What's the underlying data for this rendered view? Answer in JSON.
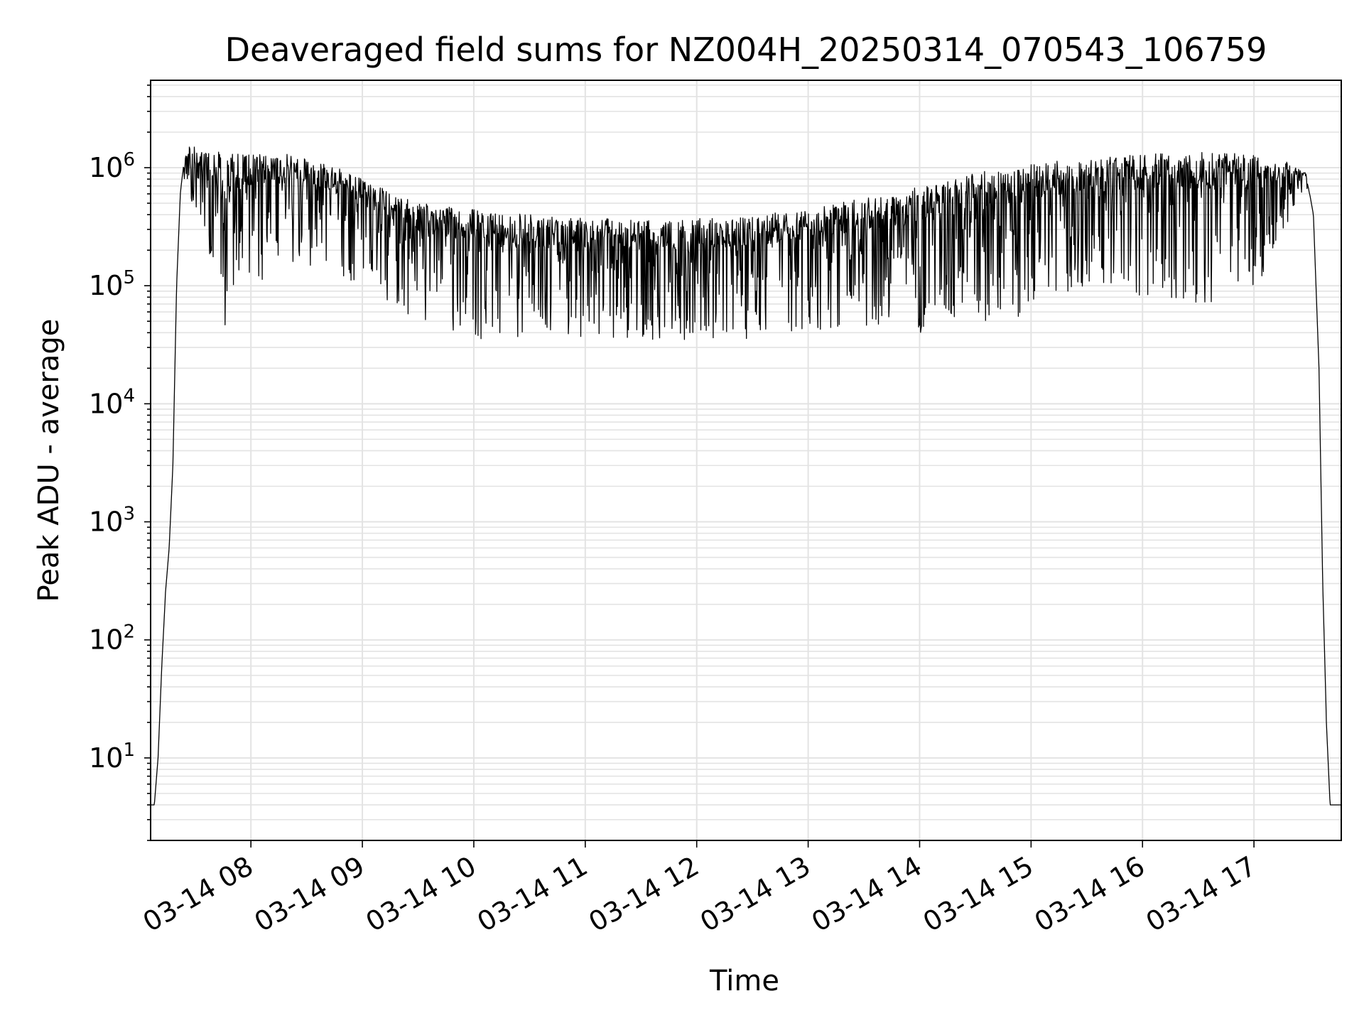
{
  "chart_data": {
    "type": "line",
    "title": "Deaveraged field sums for NZ004H_20250314_070543_106759",
    "xlabel": "Time",
    "ylabel": "Peak ADU - average",
    "yscale": "log",
    "grid": true,
    "line_color": "#000000",
    "grid_color": "#e3e3e3",
    "x_ticks": [
      "03-14 08",
      "03-14 09",
      "03-14 10",
      "03-14 11",
      "03-14 12",
      "03-14 13",
      "03-14 14",
      "03-14 15",
      "03-14 16",
      "03-14 17"
    ],
    "y_ticks": [
      {
        "base": "10",
        "exp": "1",
        "value": 10
      },
      {
        "base": "10",
        "exp": "2",
        "value": 100
      },
      {
        "base": "10",
        "exp": "3",
        "value": 1000
      },
      {
        "base": "10",
        "exp": "4",
        "value": 10000
      },
      {
        "base": "10",
        "exp": "5",
        "value": 100000
      },
      {
        "base": "10",
        "exp": "6",
        "value": 1000000
      }
    ],
    "xlim": [
      "2025-03-14 07:06",
      "2025-03-14 17:47"
    ],
    "ylim": [
      2,
      5500000
    ],
    "series": [
      {
        "x": [
          "2025-03-14 07:06",
          "2025-03-14 07:08",
          "2025-03-14 07:10",
          "2025-03-14 07:12",
          "2025-03-14 07:14",
          "2025-03-14 07:16",
          "2025-03-14 07:18",
          "2025-03-14 07:20",
          "2025-03-14 07:22",
          "2025-03-14 07:24",
          "2025-03-14 07:26",
          "2025-03-14 07:30",
          "2025-03-14 07:35",
          "2025-03-14 07:45",
          "2025-03-14 08:00",
          "2025-03-14 08:30",
          "2025-03-14 09:00",
          "2025-03-14 09:30",
          "2025-03-14 10:00",
          "2025-03-14 10:30",
          "2025-03-14 11:00",
          "2025-03-14 11:30",
          "2025-03-14 12:00",
          "2025-03-14 12:30",
          "2025-03-14 13:00",
          "2025-03-14 13:30",
          "2025-03-14 14:00",
          "2025-03-14 14:30",
          "2025-03-14 15:00",
          "2025-03-14 15:30",
          "2025-03-14 16:00",
          "2025-03-14 16:30",
          "2025-03-14 17:00",
          "2025-03-14 17:20",
          "2025-03-14 17:28",
          "2025-03-14 17:32",
          "2025-03-14 17:35",
          "2025-03-14 17:37",
          "2025-03-14 17:39",
          "2025-03-14 17:41",
          "2025-03-14 17:47"
        ],
        "upper": [
          4,
          4,
          10,
          60,
          250,
          600,
          3000,
          100000,
          600000,
          1200000,
          1500000,
          1500000,
          1400000,
          1400000,
          1300000,
          1300000,
          800000,
          500000,
          450000,
          400000,
          380000,
          360000,
          370000,
          400000,
          450000,
          550000,
          700000,
          900000,
          1100000,
          1200000,
          1300000,
          1350000,
          1300000,
          1100000,
          900000,
          400000,
          20000,
          300,
          20,
          4,
          4
        ],
        "lower": [
          4,
          4,
          10,
          60,
          250,
          600,
          3000,
          100000,
          600000,
          800000,
          800000,
          300000,
          150000,
          40000,
          100000,
          150000,
          100000,
          50000,
          35000,
          30000,
          35000,
          35000,
          35000,
          35000,
          40000,
          45000,
          40000,
          40000,
          60000,
          100000,
          80000,
          70000,
          80000,
          400000,
          700000,
          400000,
          20000,
          300,
          20,
          4,
          4
        ]
      }
    ]
  }
}
